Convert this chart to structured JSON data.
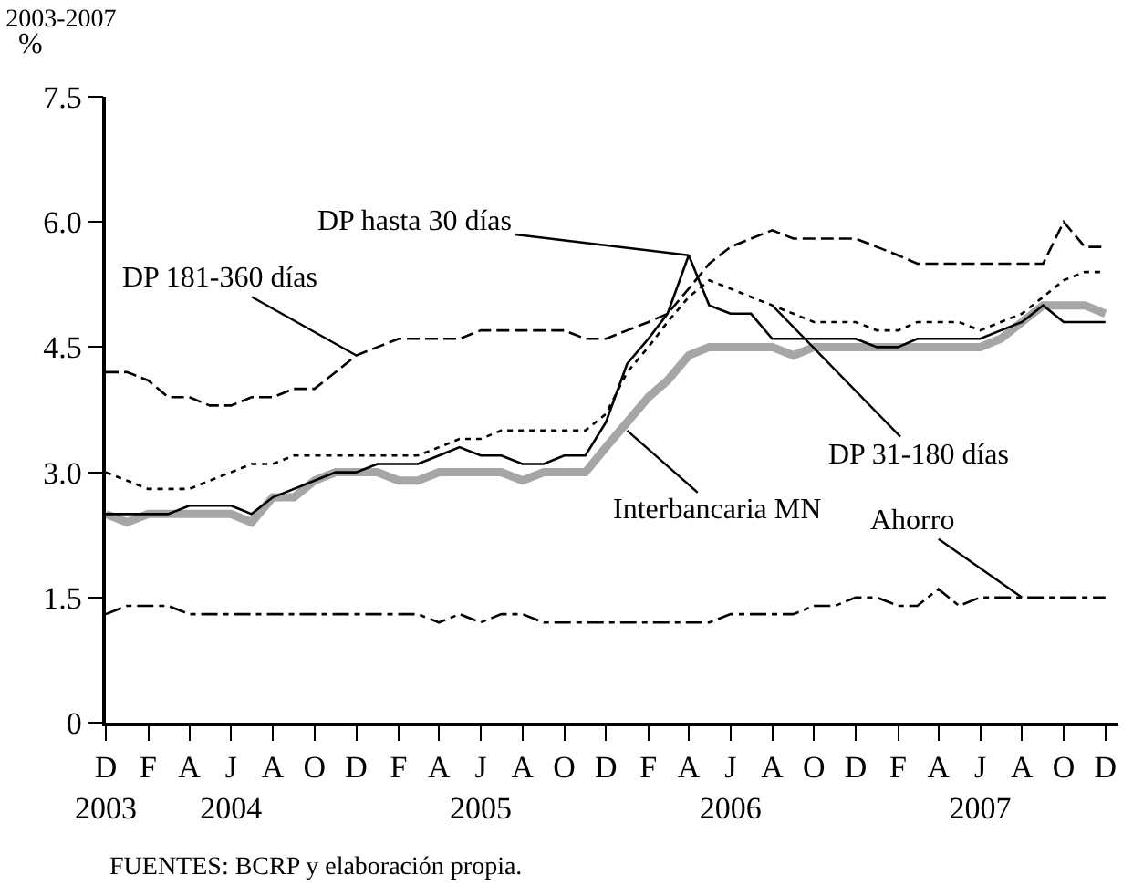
{
  "chart_data": {
    "type": "line",
    "title": "2003-2007",
    "ylabel": "%",
    "x": [
      "2003-12",
      "2004-01",
      "2004-02",
      "2004-03",
      "2004-04",
      "2004-05",
      "2004-06",
      "2004-07",
      "2004-08",
      "2004-09",
      "2004-10",
      "2004-11",
      "2004-12",
      "2005-01",
      "2005-02",
      "2005-03",
      "2005-04",
      "2005-05",
      "2005-06",
      "2005-07",
      "2005-08",
      "2005-09",
      "2005-10",
      "2005-11",
      "2005-12",
      "2006-01",
      "2006-02",
      "2006-03",
      "2006-04",
      "2006-05",
      "2006-06",
      "2006-07",
      "2006-08",
      "2006-09",
      "2006-10",
      "2006-11",
      "2006-12",
      "2007-01",
      "2007-02",
      "2007-03",
      "2007-04",
      "2007-05",
      "2007-06",
      "2007-07",
      "2007-08",
      "2007-09",
      "2007-10",
      "2007-11",
      "2007-12"
    ],
    "series": [
      {
        "color": "#a6a6a6",
        "line_style": "solid",
        "values": [
          2.5,
          2.4,
          2.5,
          2.5,
          2.5,
          2.5,
          2.5,
          2.4,
          2.7,
          2.7,
          2.9,
          3.0,
          3.0,
          3.0,
          2.9,
          2.9,
          3.0,
          3.0,
          3.0,
          3.0,
          2.9,
          3.0,
          3.0,
          3.0,
          3.3,
          3.6,
          3.9,
          4.1,
          4.4,
          4.5,
          4.5,
          4.5,
          4.5,
          4.4,
          4.5,
          4.5,
          4.5,
          4.5,
          4.5,
          4.5,
          4.5,
          4.5,
          4.5,
          4.6,
          4.8,
          5.0,
          5.0,
          5.0,
          4.9
        ]
      },
      {
        "color": "#000000",
        "line_style": "solid",
        "values": [
          2.5,
          2.5,
          2.5,
          2.5,
          2.6,
          2.6,
          2.6,
          2.5,
          2.7,
          2.8,
          2.9,
          3.0,
          3.0,
          3.1,
          3.1,
          3.1,
          3.2,
          3.3,
          3.2,
          3.2,
          3.1,
          3.1,
          3.2,
          3.2,
          3.6,
          4.3,
          4.6,
          4.9,
          5.6,
          5.0,
          4.9,
          4.9,
          4.6,
          4.6,
          4.6,
          4.6,
          4.6,
          4.5,
          4.5,
          4.6,
          4.6,
          4.6,
          4.6,
          4.7,
          4.8,
          5.0,
          4.8,
          4.8,
          4.8
        ]
      },
      {
        "color": "#000000",
        "line_style": "dotted",
        "values": [
          3.0,
          2.9,
          2.8,
          2.8,
          2.8,
          2.9,
          3.0,
          3.1,
          3.1,
          3.2,
          3.2,
          3.2,
          3.2,
          3.2,
          3.2,
          3.2,
          3.3,
          3.4,
          3.4,
          3.5,
          3.5,
          3.5,
          3.5,
          3.5,
          3.7,
          4.2,
          4.5,
          4.8,
          5.1,
          5.3,
          5.2,
          5.1,
          5.0,
          4.9,
          4.8,
          4.8,
          4.8,
          4.7,
          4.7,
          4.8,
          4.8,
          4.8,
          4.7,
          4.8,
          4.9,
          5.1,
          5.3,
          5.4,
          5.4
        ]
      },
      {
        "color": "#000000",
        "line_style": "dashed",
        "values": [
          4.2,
          4.2,
          4.1,
          3.9,
          3.9,
          3.8,
          3.8,
          3.9,
          3.9,
          4.0,
          4.0,
          4.2,
          4.4,
          4.5,
          4.6,
          4.6,
          4.6,
          4.6,
          4.7,
          4.7,
          4.7,
          4.7,
          4.7,
          4.6,
          4.6,
          4.7,
          4.8,
          4.9,
          5.2,
          5.5,
          5.7,
          5.8,
          5.9,
          5.8,
          5.8,
          5.8,
          5.8,
          5.7,
          5.6,
          5.5,
          5.5,
          5.5,
          5.5,
          5.5,
          5.5,
          5.5,
          6.0,
          5.7,
          5.7
        ]
      },
      {
        "color": "#000000",
        "line_style": "dashdot",
        "values": [
          1.3,
          1.4,
          1.4,
          1.4,
          1.3,
          1.3,
          1.3,
          1.3,
          1.3,
          1.3,
          1.3,
          1.3,
          1.3,
          1.3,
          1.3,
          1.3,
          1.2,
          1.3,
          1.2,
          1.3,
          1.3,
          1.2,
          1.2,
          1.2,
          1.2,
          1.2,
          1.2,
          1.2,
          1.2,
          1.2,
          1.3,
          1.3,
          1.3,
          1.3,
          1.4,
          1.4,
          1.5,
          1.5,
          1.4,
          1.4,
          1.6,
          1.4,
          1.5,
          1.5,
          1.5,
          1.5,
          1.5,
          1.5,
          1.5
        ]
      }
    ],
    "xlim": [
      "2003-12",
      "2007-12-20"
    ],
    "xticks": [
      {
        "value": "2003-12",
        "label": "D\n2003"
      },
      {
        "value": "2004-02",
        "label": "F"
      },
      {
        "value": "2004-04",
        "label": "A"
      },
      {
        "value": "2004-06",
        "label": "J\n2004"
      },
      {
        "value": "2004-08",
        "label": "A"
      },
      {
        "value": "2004-10",
        "label": "O"
      },
      {
        "value": "2004-12",
        "label": "D"
      },
      {
        "value": "2005-02",
        "label": "F"
      },
      {
        "value": "2005-04",
        "label": "A"
      },
      {
        "value": "2005-06",
        "label": "J\n2005"
      },
      {
        "value": "2005-08",
        "label": "A"
      },
      {
        "value": "2005-10",
        "label": "O"
      },
      {
        "value": "2005-12",
        "label": "D"
      },
      {
        "value": "2006-02",
        "label": "F"
      },
      {
        "value": "2006-04",
        "label": "A"
      },
      {
        "value": "2006-06",
        "label": "J\n2006"
      },
      {
        "value": "2006-08",
        "label": "A"
      },
      {
        "value": "2006-10",
        "label": "O"
      },
      {
        "value": "2006-12",
        "label": "D"
      },
      {
        "value": "2007-02",
        "label": "F"
      },
      {
        "value": "2007-04",
        "label": "A"
      },
      {
        "value": "2007-06",
        "label": "J\n2007"
      },
      {
        "value": "2007-08",
        "label": "A"
      },
      {
        "value": "2007-10",
        "label": "O"
      },
      {
        "value": "2007-12",
        "label": "D"
      }
    ],
    "ylim": [
      0,
      7.5
    ],
    "yticks": [
      {
        "value": 0,
        "label": "0"
      },
      1.5,
      {
        "value": 3,
        "label": "3.0"
      },
      4.5,
      {
        "value": 6,
        "label": "6.0"
      },
      7.5
    ],
    "marker": "none",
    "annotations": [
      {
        "text": "DP hasta 30 días",
        "x": "2006-04",
        "y": 5.6
      },
      {
        "text": "DP 181-360 días",
        "x": "2004-12",
        "y": 4.4
      },
      {
        "text": "DP 31-180 días",
        "x": "2006-08",
        "y": 5.0
      },
      {
        "text": "Interbancaria MN",
        "x": "2006-01",
        "y": 3.5
      },
      {
        "text": "Ahorro",
        "x": "2007-08",
        "y": 1.5
      },
      "FUENTES: BCRP y elaboración propia."
    ]
  }
}
